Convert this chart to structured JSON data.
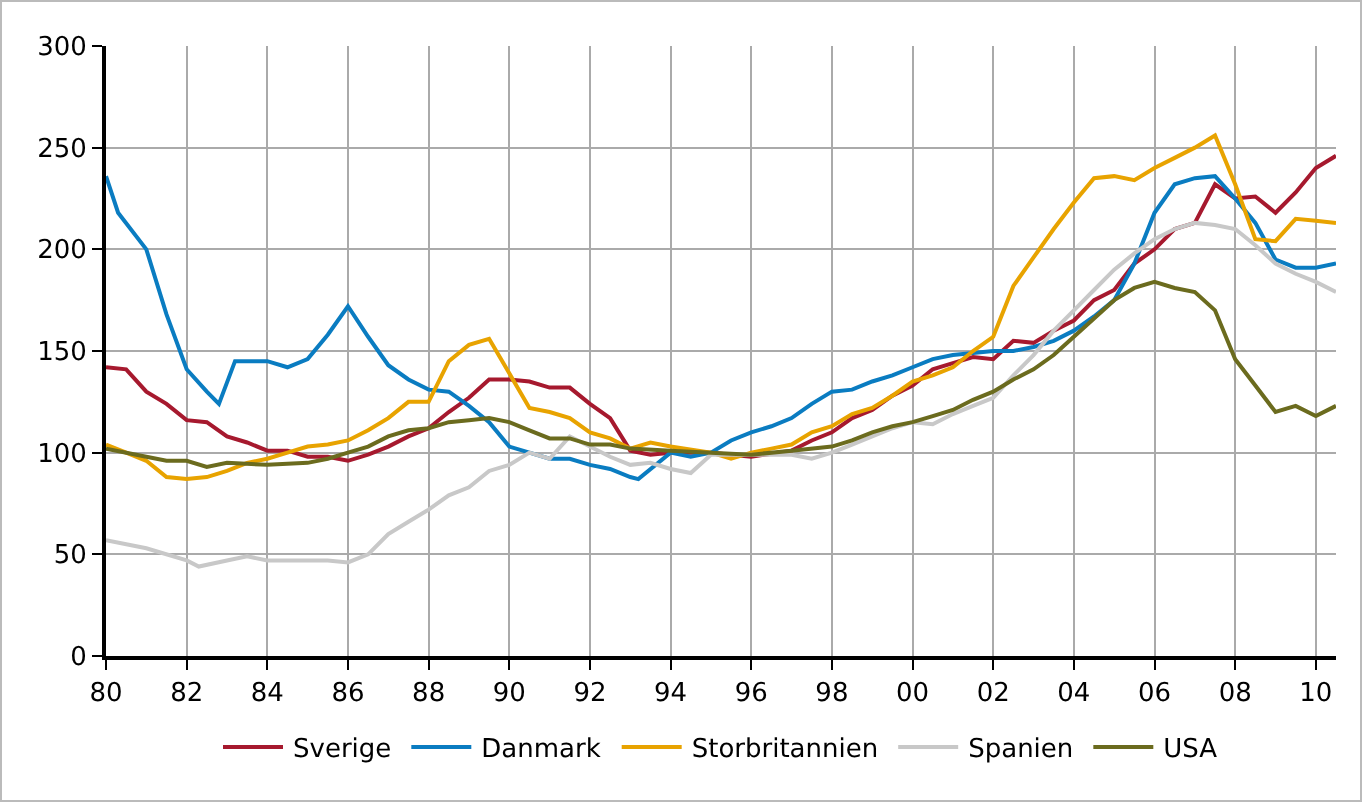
{
  "chart_data": {
    "type": "line",
    "xlim": [
      1980,
      2010.5
    ],
    "ylim": [
      0,
      300
    ],
    "xticks": [
      {
        "value": 1980,
        "label": "80"
      },
      {
        "value": 1982,
        "label": "82"
      },
      {
        "value": 1984,
        "label": "84"
      },
      {
        "value": 1986,
        "label": "86"
      },
      {
        "value": 1988,
        "label": "88"
      },
      {
        "value": 1990,
        "label": "90"
      },
      {
        "value": 1992,
        "label": "92"
      },
      {
        "value": 1994,
        "label": "94"
      },
      {
        "value": 1996,
        "label": "96"
      },
      {
        "value": 1998,
        "label": "98"
      },
      {
        "value": 2000,
        "label": "00"
      },
      {
        "value": 2002,
        "label": "02"
      },
      {
        "value": 2004,
        "label": "04"
      },
      {
        "value": 2006,
        "label": "06"
      },
      {
        "value": 2008,
        "label": "08"
      },
      {
        "value": 2010,
        "label": "10"
      }
    ],
    "yticks": [
      0,
      50,
      100,
      150,
      200,
      250,
      300
    ],
    "grid": true,
    "legend": "bottom",
    "marker": "none",
    "line_style": "solid",
    "series": [
      {
        "name": "Sverige",
        "color": "#a6192e",
        "x": [
          1980,
          1980.5,
          1981,
          1981.5,
          1982,
          1982.5,
          1983,
          1983.5,
          1984,
          1984.5,
          1985,
          1985.5,
          1986,
          1986.5,
          1987,
          1987.5,
          1988,
          1988.5,
          1989,
          1989.5,
          1990,
          1990.5,
          1991,
          1991.5,
          1992,
          1992.5,
          1993,
          1993.5,
          1994,
          1995,
          1996,
          1997,
          1997.5,
          1998,
          1998.5,
          1999,
          1999.5,
          2000,
          2000.5,
          2001,
          2001.5,
          2002,
          2002.5,
          2003,
          2003.5,
          2004,
          2004.5,
          2005,
          2005.5,
          2006,
          2006.5,
          2007,
          2007.5,
          2008,
          2008.5,
          2009,
          2009.5,
          2010,
          2010.5
        ],
        "values": [
          142,
          141,
          130,
          124,
          116,
          115,
          108,
          105,
          101,
          101,
          98,
          98,
          96,
          99,
          103,
          108,
          112,
          120,
          127,
          136,
          136,
          135,
          132,
          132,
          124,
          117,
          101,
          99,
          100,
          100,
          98,
          101,
          106,
          110,
          117,
          121,
          128,
          133,
          141,
          144,
          147,
          146,
          155,
          154,
          160,
          165,
          175,
          180,
          193,
          200,
          210,
          213,
          232,
          225,
          226,
          218,
          228,
          240,
          246
        ]
      },
      {
        "name": "Danmark",
        "color": "#0a7cc1",
        "x": [
          1980,
          1980.3,
          1981,
          1981.5,
          1982,
          1982.5,
          1982.8,
          1983.2,
          1984,
          1984.5,
          1985,
          1985.5,
          1986,
          1986.5,
          1987,
          1987.5,
          1988,
          1988.5,
          1989,
          1989.5,
          1990,
          1990.5,
          1991,
          1991.5,
          1992,
          1992.5,
          1993,
          1993.2,
          1994,
          1994.5,
          1995,
          1995.5,
          1996,
          1996.5,
          1997,
          1997.5,
          1998,
          1998.5,
          1999,
          1999.5,
          2000,
          2000.5,
          2001,
          2001.5,
          2002,
          2002.5,
          2003,
          2003.5,
          2004,
          2004.5,
          2005,
          2005.5,
          2006,
          2006.5,
          2007,
          2007.5,
          2008,
          2008.5,
          2009,
          2009.5,
          2010,
          2010.5
        ],
        "values": [
          236,
          218,
          200,
          168,
          141,
          130,
          124,
          145,
          145,
          142,
          146,
          158,
          172,
          157,
          143,
          136,
          131,
          130,
          123,
          115,
          103,
          100,
          97,
          97,
          94,
          92,
          88,
          87,
          100,
          98,
          100,
          106,
          110,
          113,
          117,
          124,
          130,
          131,
          135,
          138,
          142,
          146,
          148,
          149,
          150,
          150,
          152,
          155,
          160,
          167,
          175,
          193,
          218,
          232,
          235,
          236,
          225,
          213,
          195,
          191,
          191,
          193
        ]
      },
      {
        "name": "Storbritannien",
        "color": "#e8a300",
        "x": [
          1980,
          1980.5,
          1981,
          1981.5,
          1982,
          1982.5,
          1983,
          1983.5,
          1984,
          1984.5,
          1985,
          1985.5,
          1986,
          1986.5,
          1987,
          1987.5,
          1988,
          1988.5,
          1989,
          1989.5,
          1990,
          1990.5,
          1991,
          1991.5,
          1992,
          1992.5,
          1993,
          1993.5,
          1994,
          1995,
          1995.5,
          1996,
          1996.5,
          1997,
          1997.5,
          1998,
          1998.5,
          1999,
          1999.5,
          2000,
          2000.5,
          2001,
          2001.5,
          2002,
          2002.5,
          2003,
          2003.5,
          2004,
          2004.5,
          2005,
          2005.5,
          2006,
          2006.5,
          2007,
          2007.5,
          2008,
          2008.5,
          2009,
          2009.5,
          2010,
          2010.5
        ],
        "values": [
          104,
          100,
          96,
          88,
          87,
          88,
          91,
          95,
          97,
          100,
          103,
          104,
          106,
          111,
          117,
          125,
          125,
          145,
          153,
          156,
          139,
          122,
          120,
          117,
          110,
          107,
          102,
          105,
          103,
          100,
          97,
          100,
          102,
          104,
          110,
          113,
          119,
          122,
          128,
          135,
          138,
          142,
          150,
          157,
          182,
          196,
          210,
          223,
          235,
          236,
          234,
          240,
          245,
          250,
          256,
          232,
          205,
          204,
          215,
          214,
          213
        ]
      },
      {
        "name": "Spanien",
        "color": "#c8c8c8",
        "x": [
          1980,
          1981,
          1982,
          1982.3,
          1983,
          1983.5,
          1984,
          1985,
          1985.5,
          1986,
          1986.5,
          1987,
          1987.5,
          1988,
          1988.5,
          1989,
          1989.5,
          1990,
          1990.5,
          1991,
          1991.5,
          1992,
          1992.5,
          1993,
          1993.5,
          1994,
          1994.5,
          1995,
          1996,
          1997,
          1997.5,
          1998,
          1998.5,
          1999,
          1999.5,
          2000,
          2000.5,
          2001,
          2001.5,
          2002,
          2002.5,
          2003,
          2003.5,
          2004,
          2004.5,
          2005,
          2005.5,
          2006,
          2006.5,
          2007,
          2007.5,
          2008,
          2008.5,
          2009,
          2009.5,
          2010,
          2010.5
        ],
        "values": [
          57,
          53,
          47,
          44,
          47,
          49,
          47,
          47,
          47,
          46,
          50,
          60,
          66,
          72,
          79,
          83,
          91,
          94,
          100,
          97,
          108,
          103,
          98,
          94,
          95,
          92,
          90,
          99,
          99,
          99,
          97,
          100,
          104,
          108,
          112,
          115,
          114,
          119,
          123,
          127,
          138,
          148,
          160,
          170,
          180,
          190,
          198,
          205,
          210,
          213,
          212,
          210,
          202,
          193,
          188,
          184,
          179
        ]
      },
      {
        "name": "USA",
        "color": "#6b6b1e",
        "x": [
          1980,
          1981,
          1981.5,
          1982,
          1982.5,
          1983,
          1984,
          1985,
          1985.5,
          1986,
          1986.5,
          1987,
          1987.5,
          1988,
          1988.5,
          1989,
          1989.5,
          1990,
          1990.5,
          1991,
          1991.5,
          1992,
          1992.5,
          1993,
          1994,
          1995,
          1996,
          1997,
          1998,
          1998.5,
          1999,
          1999.5,
          2000,
          2000.5,
          2001,
          2001.5,
          2002,
          2002.5,
          2003,
          2003.5,
          2004,
          2004.5,
          2005,
          2005.5,
          2006,
          2006.5,
          2007,
          2007.5,
          2008,
          2008.5,
          2009,
          2009.5,
          2010,
          2010.5
        ],
        "values": [
          102,
          98,
          96,
          96,
          93,
          95,
          94,
          95,
          97,
          100,
          103,
          108,
          111,
          112,
          115,
          116,
          117,
          115,
          111,
          107,
          107,
          104,
          104,
          102,
          101,
          100,
          99,
          101,
          103,
          106,
          110,
          113,
          115,
          118,
          121,
          126,
          130,
          136,
          141,
          148,
          157,
          166,
          175,
          181,
          184,
          181,
          179,
          170,
          146,
          133,
          120,
          123,
          118,
          123
        ]
      }
    ]
  }
}
